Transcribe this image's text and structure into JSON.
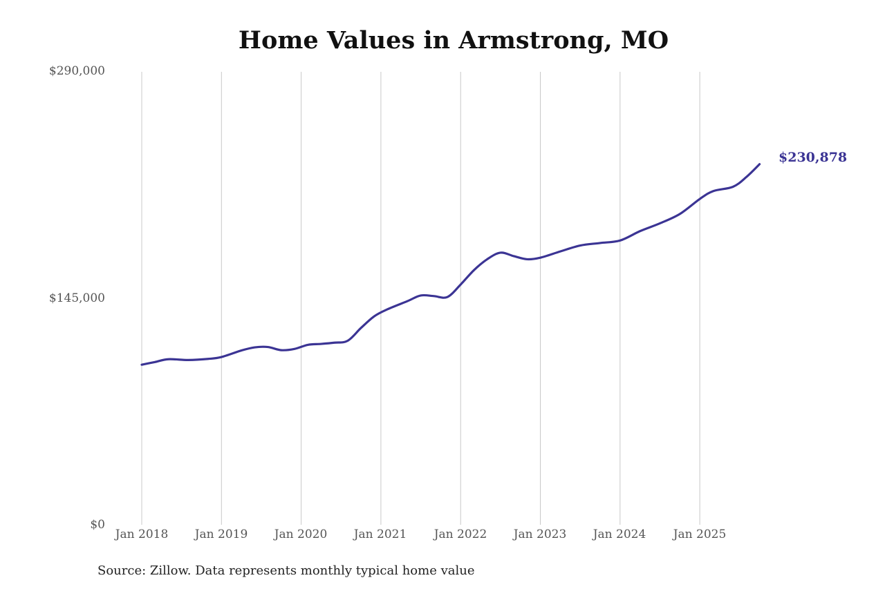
{
  "title": "Home Values in Armstrong, MO",
  "source": "Source: Zillow. Data represents monthly typical home value",
  "end_label": "$230,878",
  "colors": {
    "line": "#3b3494",
    "grid": "#c8c8c8",
    "label": "#555555"
  },
  "y_axis": {
    "ticks": [
      "$290,000",
      "$145,000",
      "$0"
    ]
  },
  "x_axis": {
    "ticks": [
      "Jan 2018",
      "Jan 2019",
      "Jan 2020",
      "Jan 2021",
      "Jan 2022",
      "Jan 2023",
      "Jan 2024",
      "Jan 2025"
    ]
  },
  "chart_data": {
    "type": "line",
    "title": "Home Values in Armstrong, MO",
    "xlabel": "",
    "ylabel": "",
    "ylim": [
      0,
      290000
    ],
    "grid": "vertical",
    "x_ticks": [
      "Jan 2018",
      "Jan 2019",
      "Jan 2020",
      "Jan 2021",
      "Jan 2022",
      "Jan 2023",
      "Jan 2024",
      "Jan 2025"
    ],
    "y_ticks": [
      0,
      145000,
      290000
    ],
    "annotation": "$230,878",
    "source": "Source: Zillow. Data represents monthly typical home value",
    "series": [
      {
        "name": "Typical home value",
        "color": "#3b3494",
        "x": [
          "2018-01",
          "2018-03",
          "2018-05",
          "2018-08",
          "2018-11",
          "2019-01",
          "2019-04",
          "2019-06",
          "2019-08",
          "2019-10",
          "2019-12",
          "2020-02",
          "2020-04",
          "2020-06",
          "2020-08",
          "2020-10",
          "2020-12",
          "2021-02",
          "2021-05",
          "2021-07",
          "2021-09",
          "2021-11",
          "2022-01",
          "2022-03",
          "2022-05",
          "2022-07",
          "2022-09",
          "2022-11",
          "2023-01",
          "2023-04",
          "2023-07",
          "2023-10",
          "2024-01",
          "2024-04",
          "2024-07",
          "2024-10",
          "2025-01",
          "2025-03",
          "2025-06",
          "2025-08",
          "2025-10"
        ],
        "values": [
          102500,
          104200,
          106000,
          105500,
          106200,
          107400,
          111600,
          113600,
          113800,
          111800,
          112600,
          115200,
          115800,
          116600,
          117800,
          126000,
          133500,
          138000,
          143200,
          146800,
          146400,
          145800,
          153800,
          163000,
          170000,
          174200,
          172000,
          170000,
          171000,
          175000,
          178800,
          180400,
          182000,
          188000,
          193000,
          199000,
          208600,
          213600,
          216400,
          222600,
          230878
        ]
      }
    ]
  }
}
